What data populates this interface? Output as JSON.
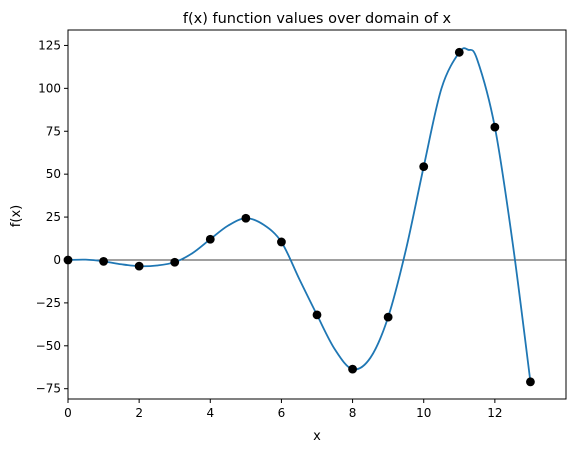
{
  "chart_data": {
    "type": "line",
    "title": "f(x) function values over domain of x",
    "xlabel": "x",
    "ylabel": "f(x)",
    "xlim": [
      0,
      14
    ],
    "ylim": [
      -81,
      134
    ],
    "x_ticks": [
      0,
      2,
      4,
      6,
      8,
      10,
      12
    ],
    "x_tick_labels": [
      "0",
      "2",
      "4",
      "6",
      "8",
      "10",
      "12"
    ],
    "y_ticks": [
      -75,
      -50,
      -25,
      0,
      25,
      50,
      75,
      100,
      125
    ],
    "y_tick_labels": [
      "−75",
      "−50",
      "−25",
      "0",
      "25",
      "50",
      "75",
      "100",
      "125"
    ],
    "grid": false,
    "reference_line_y": 0,
    "series": [
      {
        "kind": "points",
        "color": "#000000",
        "x": [
          0,
          1,
          2,
          3,
          4,
          5,
          6,
          7,
          8,
          9,
          10,
          11,
          12,
          13
        ],
        "y": [
          0,
          -0.8,
          -3.6,
          -1.3,
          12.1,
          24.3,
          10.5,
          -32,
          -63.6,
          -33.3,
          54.4,
          121,
          77.4,
          -71
        ]
      },
      {
        "kind": "curve",
        "color": "#1f77b4",
        "x": [
          0,
          0.5,
          1,
          1.5,
          2,
          2.5,
          3,
          3.5,
          4,
          4.5,
          5,
          5.5,
          6,
          6.5,
          7,
          7.5,
          8,
          8.5,
          9,
          9.5,
          10,
          10.5,
          11,
          11.25,
          11.5,
          12,
          12.5,
          13
        ],
        "y": [
          0,
          0.2,
          -0.8,
          -2.5,
          -3.6,
          -3.2,
          -1.3,
          4,
          12.1,
          20,
          24.3,
          20.5,
          10.5,
          -11,
          -32,
          -52,
          -63.6,
          -57,
          -33.3,
          6,
          54.4,
          100,
          121,
          122.5,
          117,
          77.4,
          10,
          -71
        ]
      }
    ]
  }
}
